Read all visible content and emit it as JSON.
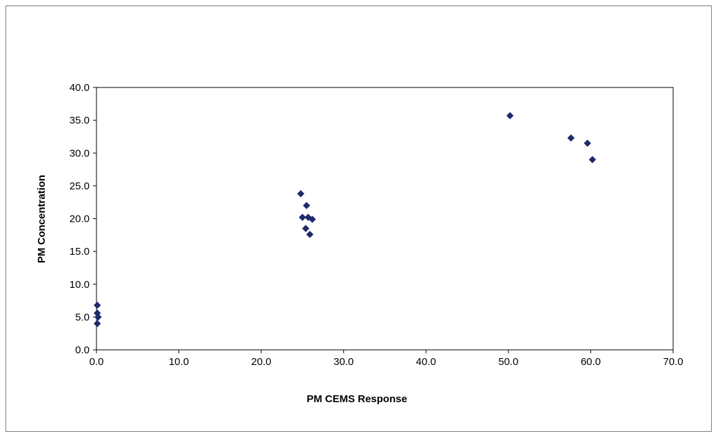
{
  "chart_data": {
    "type": "scatter",
    "title": "",
    "xlabel": "PM CEMS Response",
    "ylabel": "PM Concentration",
    "xlim": [
      0,
      70
    ],
    "ylim": [
      0,
      40
    ],
    "x_ticks": [
      "0.0",
      "10.0",
      "20.0",
      "30.0",
      "40.0",
      "50.0",
      "60.0",
      "70.0"
    ],
    "y_ticks": [
      "0.0",
      "5.0",
      "10.0",
      "15.0",
      "20.0",
      "25.0",
      "30.0",
      "35.0",
      "40.0"
    ],
    "grid": false,
    "legend": "none",
    "marker": "diamond",
    "marker_color": "#1f2a6b",
    "series": [
      {
        "points": [
          {
            "x": 0.1,
            "y": 6.8
          },
          {
            "x": 0.1,
            "y": 5.6
          },
          {
            "x": 0.2,
            "y": 5.0
          },
          {
            "x": 0.1,
            "y": 4.0
          },
          {
            "x": 24.8,
            "y": 23.8
          },
          {
            "x": 25.5,
            "y": 22.0
          },
          {
            "x": 25.0,
            "y": 20.2
          },
          {
            "x": 25.7,
            "y": 20.2
          },
          {
            "x": 26.2,
            "y": 19.9
          },
          {
            "x": 25.4,
            "y": 18.5
          },
          {
            "x": 25.9,
            "y": 17.6
          },
          {
            "x": 50.2,
            "y": 35.7
          },
          {
            "x": 57.6,
            "y": 32.3
          },
          {
            "x": 59.6,
            "y": 31.5
          },
          {
            "x": 60.2,
            "y": 29.0
          }
        ]
      }
    ]
  }
}
